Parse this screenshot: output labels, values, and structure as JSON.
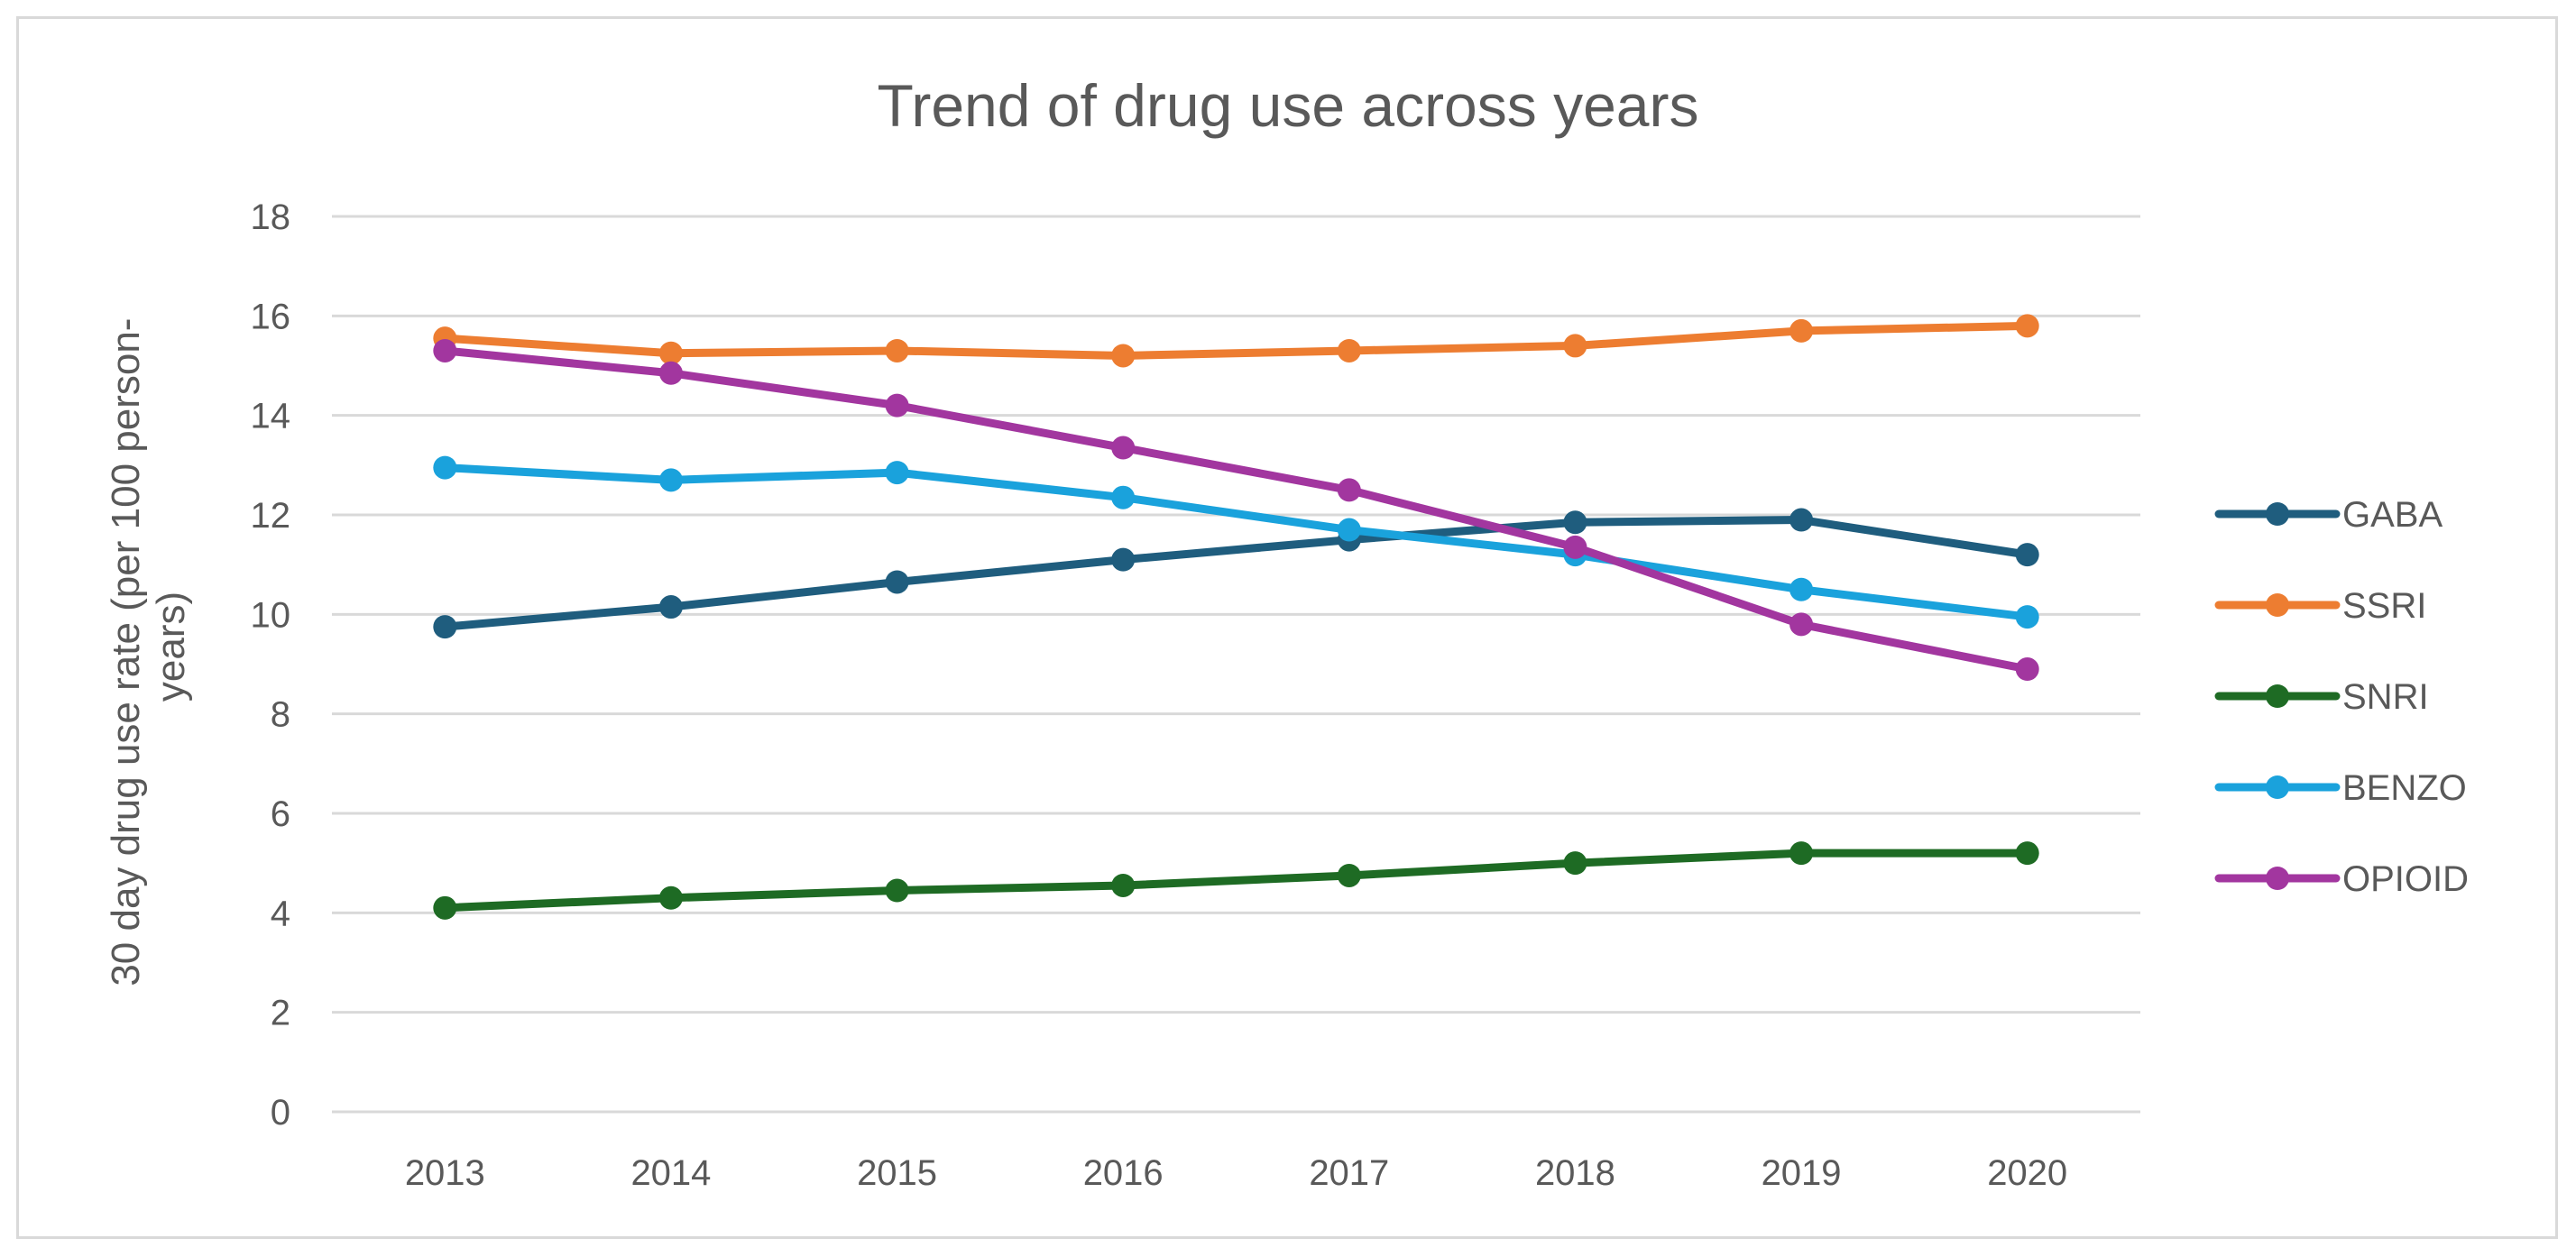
{
  "chart_data": {
    "type": "line",
    "title": "Trend of drug use across years",
    "xlabel": "",
    "ylabel": "30 day drug use rate (per 100 person-years)",
    "ylabel_lines": [
      "30 day drug use rate (per 100 person-",
      "years)"
    ],
    "categories": [
      "2013",
      "2014",
      "2015",
      "2016",
      "2017",
      "2018",
      "2019",
      "2020"
    ],
    "ylim": [
      0,
      18
    ],
    "yticks": [
      0,
      2,
      4,
      6,
      8,
      10,
      12,
      14,
      16,
      18
    ],
    "grid": true,
    "legend_position": "right",
    "series": [
      {
        "name": "GABA",
        "color": "#1f5d7e",
        "values": [
          9.75,
          10.15,
          10.65,
          11.1,
          11.5,
          11.85,
          11.9,
          11.2
        ]
      },
      {
        "name": "SSRI",
        "color": "#ed7d31",
        "values": [
          15.55,
          15.25,
          15.3,
          15.2,
          15.3,
          15.4,
          15.7,
          15.8
        ]
      },
      {
        "name": "SNRI",
        "color": "#1e6b24",
        "values": [
          4.1,
          4.3,
          4.45,
          4.55,
          4.75,
          5.0,
          5.2,
          5.2
        ]
      },
      {
        "name": "BENZO",
        "color": "#1aa2dc",
        "values": [
          12.95,
          12.7,
          12.85,
          12.35,
          11.7,
          11.2,
          10.5,
          9.95
        ]
      },
      {
        "name": "OPIOID",
        "color": "#a2369f",
        "values": [
          15.3,
          14.85,
          14.2,
          13.35,
          12.5,
          11.35,
          9.8,
          8.9
        ]
      }
    ]
  }
}
